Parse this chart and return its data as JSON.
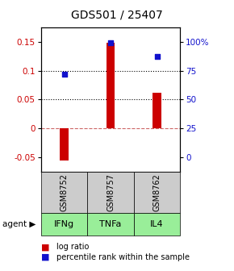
{
  "title": "GDS501 / 25407",
  "samples": [
    "GSM8752",
    "GSM8757",
    "GSM8762"
  ],
  "agents": [
    "IFNg",
    "TNFa",
    "IL4"
  ],
  "log_ratios": [
    -0.055,
    0.148,
    0.062
  ],
  "percentile_ranks_pct": [
    72,
    99,
    87
  ],
  "bar_color": "#cc0000",
  "dot_color": "#1111cc",
  "sample_bg_color": "#cccccc",
  "agent_bg_color": "#99ee99",
  "ylim_left": [
    -0.075,
    0.175
  ],
  "ylim_right": [
    -9.375,
    21.875
  ],
  "yticks_left": [
    -0.05,
    0.0,
    0.05,
    0.1,
    0.15
  ],
  "yticks_right": [
    0,
    25,
    50,
    75,
    100
  ],
  "ytick_labels_right": [
    "0",
    "25",
    "50",
    "75",
    "100%"
  ],
  "hlines": [
    0.05,
    0.1
  ],
  "zero_line_y": 0.0,
  "bar_width": 0.18,
  "dot_size": 22,
  "legend_bar_label": "log ratio",
  "legend_dot_label": "percentile rank within the sample",
  "title_fontsize": 10,
  "tick_fontsize": 7.5,
  "sample_fontsize": 7,
  "agent_fontsize": 8,
  "legend_fontsize": 7
}
